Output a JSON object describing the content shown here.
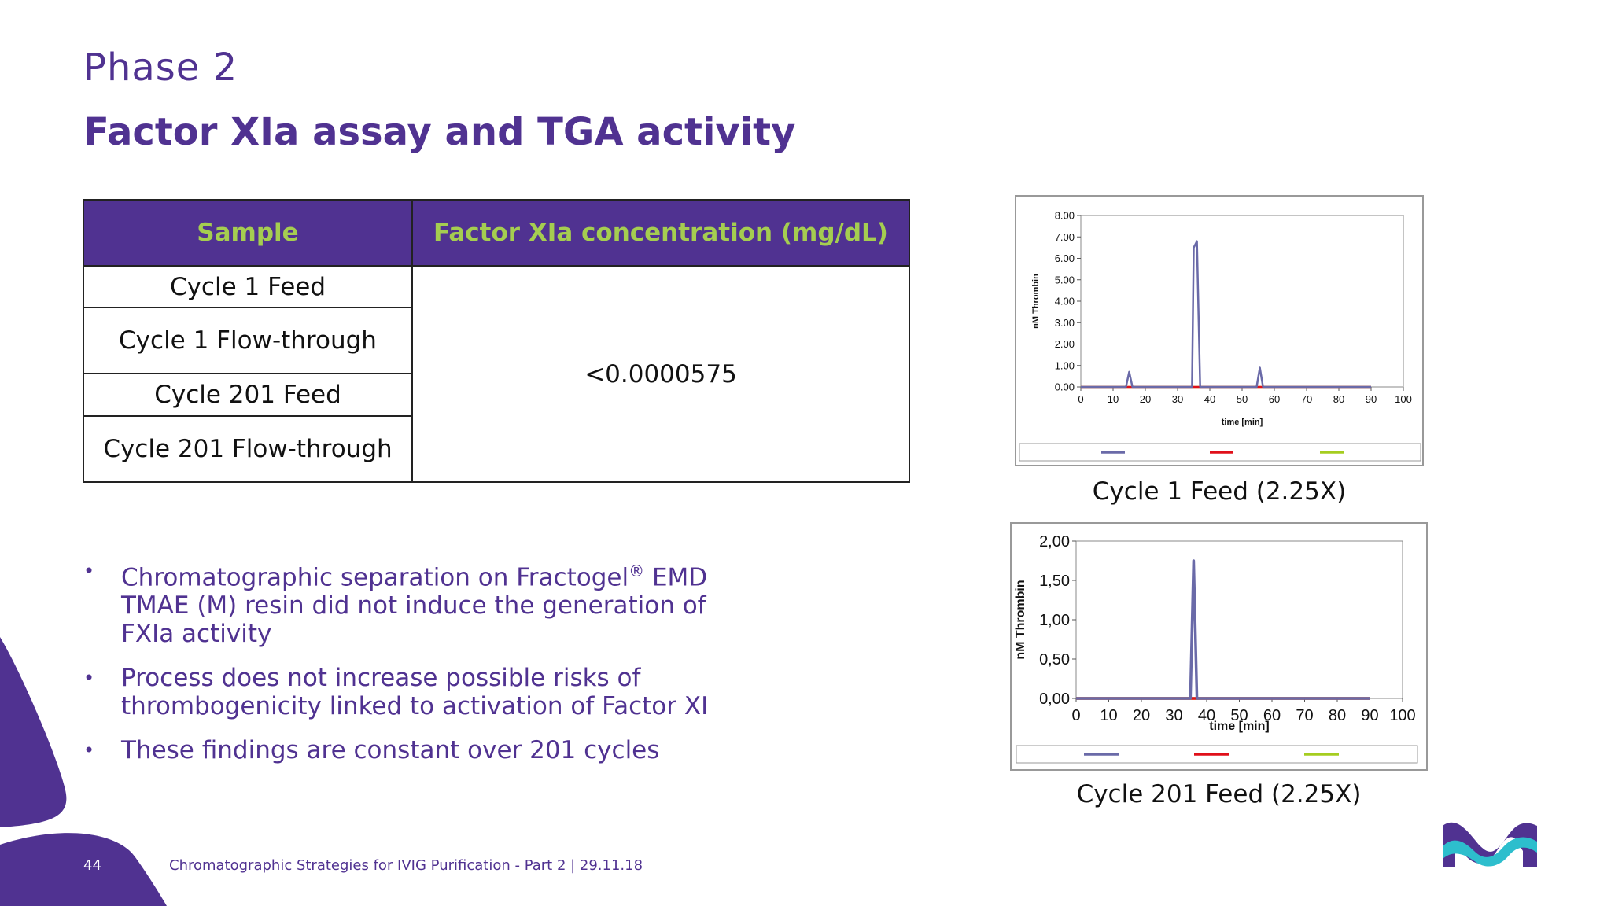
{
  "slide": {
    "phase": "Phase 2",
    "title": "Factor XIa assay and TGA activity",
    "page_number": "44",
    "footer": "Chromatographic Strategies for IVIG Purification - Part 2 | 29.11.18"
  },
  "table": {
    "headers": [
      "Sample",
      "Factor XIa concentration (mg/dL)"
    ],
    "samples": [
      "Cycle 1 Feed",
      "Cycle 1 Flow-through",
      "Cycle 201 Feed",
      "Cycle 201 Flow-through"
    ],
    "value": "<0.0000575"
  },
  "bullets": [
    {
      "text_before": "Chromatographic separation on Fractogel",
      "sup": "®",
      "text_after": " EMD TMAE (M) resin did not induce the generation of FXIa activity"
    },
    {
      "text": "Process does not increase possible risks of thrombogenicity linked to activation of Factor XI"
    },
    {
      "text": "These findings are constant over 201 cycles"
    }
  ],
  "colors": {
    "brand_purple": "#503291",
    "header_green": "#a5cd50",
    "series_1": "#6a6aa8",
    "series_2": "#e0101a",
    "series_3": "#a5cd20"
  },
  "chart_data": [
    {
      "type": "line",
      "caption": "Cycle 1 Feed (2.25X)",
      "xlabel": "time [min]",
      "ylabel": "nM Thrombin",
      "xlim": [
        0,
        100
      ],
      "ylim": [
        0,
        8
      ],
      "x_ticks": [
        "0",
        "10",
        "20",
        "30",
        "40",
        "50",
        "60",
        "70",
        "80",
        "90",
        "100"
      ],
      "y_ticks": [
        "0.00",
        "1.00",
        "2.00",
        "3.00",
        "4.00",
        "5.00",
        "6.00",
        "7.00",
        "8.00"
      ],
      "series": [
        {
          "color": "#6a6aa8",
          "points": [
            [
              0,
              0
            ],
            [
              14,
              0
            ],
            [
              15,
              0.7
            ],
            [
              16,
              0
            ],
            [
              34.5,
              0
            ],
            [
              35,
              6.5
            ],
            [
              36,
              6.8
            ],
            [
              37,
              0
            ],
            [
              54.5,
              0
            ],
            [
              55.5,
              0.9
            ],
            [
              56.5,
              0
            ],
            [
              90,
              0
            ]
          ]
        },
        {
          "color": "#e0101a",
          "points": [
            [
              0,
              0
            ],
            [
              90,
              0
            ]
          ]
        },
        {
          "color": "#a5cd20",
          "points": [
            [
              0,
              0
            ],
            [
              90,
              0
            ]
          ]
        }
      ]
    },
    {
      "type": "line",
      "caption": "Cycle 201 Feed (2.25X)",
      "xlabel": "time [min]",
      "ylabel": "nM Thrombin",
      "xlim": [
        0,
        100
      ],
      "ylim": [
        0,
        2
      ],
      "x_ticks": [
        "0",
        "10",
        "20",
        "30",
        "40",
        "50",
        "60",
        "70",
        "80",
        "90",
        "100"
      ],
      "y_ticks": [
        "0,00",
        "0,50",
        "1,00",
        "1,50",
        "2,00"
      ],
      "series": [
        {
          "color": "#6a6aa8",
          "points": [
            [
              0,
              0
            ],
            [
              35,
              0
            ],
            [
              36,
              1.75
            ],
            [
              37,
              0
            ],
            [
              90,
              0
            ]
          ]
        },
        {
          "color": "#e0101a",
          "points": [
            [
              0,
              0
            ],
            [
              90,
              0
            ]
          ]
        },
        {
          "color": "#a5cd20",
          "points": [
            [
              0,
              0
            ],
            [
              90,
              0
            ]
          ]
        }
      ]
    }
  ]
}
